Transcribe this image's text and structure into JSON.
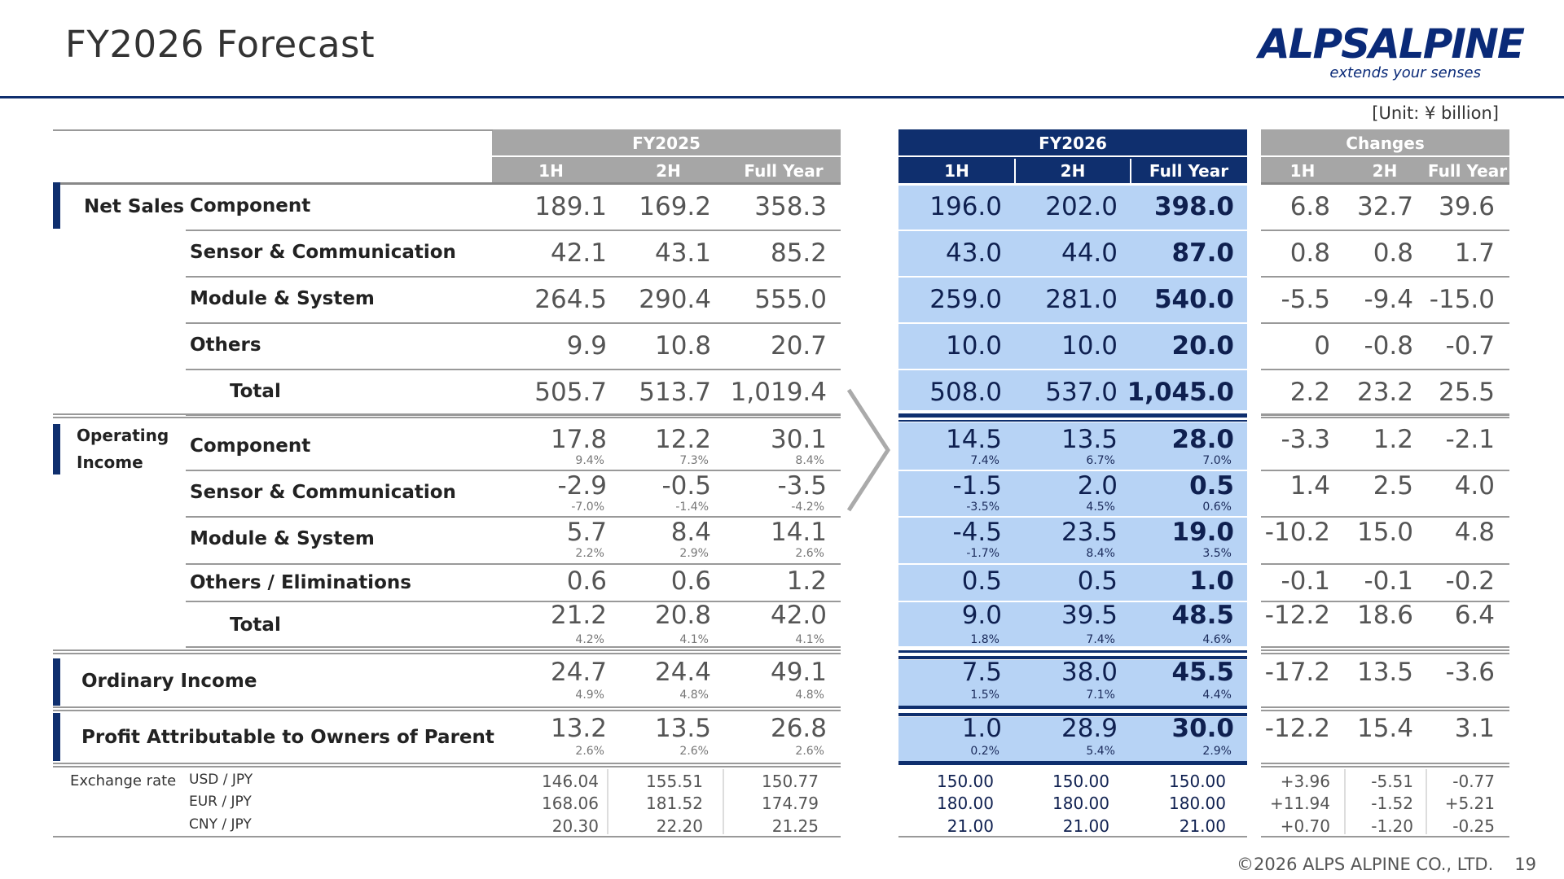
{
  "header": {
    "title": "FY2026 Forecast",
    "unit": "[Unit: ¥ billion]"
  },
  "logo": {
    "name": "ALPSALPINE",
    "tagline": "extends your senses"
  },
  "footer": {
    "copyright": "©2026 ALPS ALPINE CO., LTD.",
    "page": "19"
  },
  "columns": {
    "fy2025": {
      "label": "FY2025",
      "sub": [
        "1H",
        "2H",
        "Full Year"
      ]
    },
    "fy2026": {
      "label": "FY2026",
      "sub": [
        "1H",
        "2H",
        "Full Year"
      ]
    },
    "changes": {
      "label": "Changes",
      "sub": [
        "1H",
        "2H",
        "Full Year"
      ]
    }
  },
  "sections": {
    "net_sales": "Net Sales",
    "operating_income_1": "Operating",
    "operating_income_2": "Income",
    "ordinary_income": "Ordinary Income",
    "profit_parent": "Profit Attributable to Owners of Parent",
    "exchange_rate": "Exchange rate"
  },
  "rows": [
    {
      "label": "Component",
      "fy2025": [
        "189.1",
        "169.2",
        "358.3"
      ],
      "fy2026": [
        "196.0",
        "202.0",
        "398.0"
      ],
      "changes": [
        "6.8",
        "32.7",
        "39.6"
      ]
    },
    {
      "label": "Sensor & Communication",
      "fy2025": [
        "42.1",
        "43.1",
        "85.2"
      ],
      "fy2026": [
        "43.0",
        "44.0",
        "87.0"
      ],
      "changes": [
        "0.8",
        "0.8",
        "1.7"
      ]
    },
    {
      "label": "Module & System",
      "fy2025": [
        "264.5",
        "290.4",
        "555.0"
      ],
      "fy2026": [
        "259.0",
        "281.0",
        "540.0"
      ],
      "changes": [
        "-5.5",
        "-9.4",
        "-15.0"
      ]
    },
    {
      "label": "Others",
      "fy2025": [
        "9.9",
        "10.8",
        "20.7"
      ],
      "fy2026": [
        "10.0",
        "10.0",
        "20.0"
      ],
      "changes": [
        "0",
        "-0.8",
        "-0.7"
      ]
    },
    {
      "label": "Total",
      "fy2025": [
        "505.7",
        "513.7",
        "1,019.4"
      ],
      "fy2026": [
        "508.0",
        "537.0",
        "1,045.0"
      ],
      "changes": [
        "2.2",
        "23.2",
        "25.5"
      ]
    },
    {
      "label": "Component",
      "fy2025": [
        "17.8",
        "12.2",
        "30.1"
      ],
      "fy2025_pct": [
        "9.4%",
        "7.3%",
        "8.4%"
      ],
      "fy2026": [
        "14.5",
        "13.5",
        "28.0"
      ],
      "fy2026_pct": [
        "7.4%",
        "6.7%",
        "7.0%"
      ],
      "changes": [
        "-3.3",
        "1.2",
        "-2.1"
      ]
    },
    {
      "label": "Sensor & Communication",
      "fy2025": [
        "-2.9",
        "-0.5",
        "-3.5"
      ],
      "fy2025_pct": [
        "-7.0%",
        "-1.4%",
        "-4.2%"
      ],
      "fy2026": [
        "-1.5",
        "2.0",
        "0.5"
      ],
      "fy2026_pct": [
        "-3.5%",
        "4.5%",
        "0.6%"
      ],
      "changes": [
        "1.4",
        "2.5",
        "4.0"
      ]
    },
    {
      "label": "Module & System",
      "fy2025": [
        "5.7",
        "8.4",
        "14.1"
      ],
      "fy2025_pct": [
        "2.2%",
        "2.9%",
        "2.6%"
      ],
      "fy2026": [
        "-4.5",
        "23.5",
        "19.0"
      ],
      "fy2026_pct": [
        "-1.7%",
        "8.4%",
        "3.5%"
      ],
      "changes": [
        "-10.2",
        "15.0",
        "4.8"
      ]
    },
    {
      "label": "Others / Eliminations",
      "fy2025": [
        "0.6",
        "0.6",
        "1.2"
      ],
      "fy2026": [
        "0.5",
        "0.5",
        "1.0"
      ],
      "changes": [
        "-0.1",
        "-0.1",
        "-0.2"
      ]
    },
    {
      "label": "Total",
      "fy2025": [
        "21.2",
        "20.8",
        "42.0"
      ],
      "fy2025_pct": [
        "4.2%",
        "4.1%",
        "4.1%"
      ],
      "fy2026": [
        "9.0",
        "39.5",
        "48.5"
      ],
      "fy2026_pct": [
        "1.8%",
        "7.4%",
        "4.6%"
      ],
      "changes": [
        "-12.2",
        "18.6",
        "6.4"
      ]
    },
    {
      "label": "",
      "fy2025": [
        "24.7",
        "24.4",
        "49.1"
      ],
      "fy2025_pct": [
        "4.9%",
        "4.8%",
        "4.8%"
      ],
      "fy2026": [
        "7.5",
        "38.0",
        "45.5"
      ],
      "fy2026_pct": [
        "1.5%",
        "7.1%",
        "4.4%"
      ],
      "changes": [
        "-17.2",
        "13.5",
        "-3.6"
      ]
    },
    {
      "label": "",
      "fy2025": [
        "13.2",
        "13.5",
        "26.8"
      ],
      "fy2025_pct": [
        "2.6%",
        "2.6%",
        "2.6%"
      ],
      "fy2026": [
        "1.0",
        "28.9",
        "30.0"
      ],
      "fy2026_pct": [
        "0.2%",
        "5.4%",
        "2.9%"
      ],
      "changes": [
        "-12.2",
        "15.4",
        "3.1"
      ]
    }
  ],
  "exchange": [
    {
      "label": "USD / JPY",
      "fy2025": [
        "146.04",
        "155.51",
        "150.77"
      ],
      "fy2026": [
        "150.00",
        "150.00",
        "150.00"
      ],
      "changes": [
        "+3.96",
        "-5.51",
        "-0.77"
      ]
    },
    {
      "label": "EUR / JPY",
      "fy2025": [
        "168.06",
        "181.52",
        "174.79"
      ],
      "fy2026": [
        "180.00",
        "180.00",
        "180.00"
      ],
      "changes": [
        "+11.94",
        "-1.52",
        "+5.21"
      ]
    },
    {
      "label": "CNY / JPY",
      "fy2025": [
        "20.30",
        "22.20",
        "21.25"
      ],
      "fy2026": [
        "21.00",
        "21.00",
        "21.00"
      ],
      "changes": [
        "+0.70",
        "-1.20",
        "-0.25"
      ]
    }
  ],
  "colors": {
    "navy": "#0f2f6e",
    "light_blue": "#b7d3f5",
    "gray_header": "#a6a6a6"
  }
}
